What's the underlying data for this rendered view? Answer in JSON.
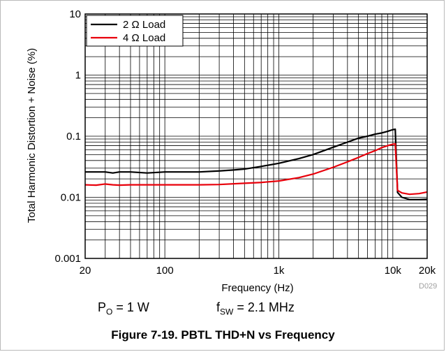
{
  "chart_data": {
    "type": "line",
    "xlabel": "Frequency (Hz)",
    "ylabel": "Total Harmonic Distortion + Noise (%)",
    "x_scale": "log",
    "y_scale": "log",
    "xlim": [
      20,
      20000
    ],
    "ylim": [
      0.001,
      10
    ],
    "x_ticks": [
      {
        "value": 20,
        "label": "20"
      },
      {
        "value": 100,
        "label": "100"
      },
      {
        "value": 1000,
        "label": "1k"
      },
      {
        "value": 10000,
        "label": "10k"
      },
      {
        "value": 20000,
        "label": "20k"
      }
    ],
    "y_ticks": [
      {
        "value": 0.001,
        "label": "0.001"
      },
      {
        "value": 0.01,
        "label": "0.01"
      },
      {
        "value": 0.1,
        "label": "0.1"
      },
      {
        "value": 1,
        "label": "1"
      },
      {
        "value": 10,
        "label": "10"
      }
    ],
    "grid": true,
    "legend_position": "top-left",
    "series": [
      {
        "name": "2 Ω Load",
        "color": "#000000",
        "points": [
          [
            20,
            0.026
          ],
          [
            25,
            0.026
          ],
          [
            30,
            0.026
          ],
          [
            35,
            0.025
          ],
          [
            40,
            0.026
          ],
          [
            50,
            0.026
          ],
          [
            70,
            0.025
          ],
          [
            100,
            0.026
          ],
          [
            150,
            0.026
          ],
          [
            200,
            0.026
          ],
          [
            300,
            0.027
          ],
          [
            400,
            0.028
          ],
          [
            500,
            0.029
          ],
          [
            700,
            0.032
          ],
          [
            1000,
            0.036
          ],
          [
            1500,
            0.043
          ],
          [
            2000,
            0.05
          ],
          [
            3000,
            0.066
          ],
          [
            4000,
            0.08
          ],
          [
            5000,
            0.093
          ],
          [
            6000,
            0.1
          ],
          [
            7000,
            0.108
          ],
          [
            8000,
            0.113
          ],
          [
            9000,
            0.12
          ],
          [
            10000,
            0.128
          ],
          [
            10500,
            0.13
          ],
          [
            11000,
            0.012
          ],
          [
            12000,
            0.01
          ],
          [
            14000,
            0.0092
          ],
          [
            17000,
            0.0092
          ],
          [
            20000,
            0.0093
          ]
        ]
      },
      {
        "name": "4 Ω Load",
        "color": "#e8000b",
        "points": [
          [
            20,
            0.016
          ],
          [
            25,
            0.0158
          ],
          [
            30,
            0.0165
          ],
          [
            35,
            0.016
          ],
          [
            40,
            0.0158
          ],
          [
            50,
            0.016
          ],
          [
            70,
            0.016
          ],
          [
            100,
            0.016
          ],
          [
            150,
            0.016
          ],
          [
            200,
            0.016
          ],
          [
            300,
            0.0162
          ],
          [
            500,
            0.017
          ],
          [
            700,
            0.0175
          ],
          [
            1000,
            0.0185
          ],
          [
            1500,
            0.021
          ],
          [
            2000,
            0.024
          ],
          [
            3000,
            0.031
          ],
          [
            4000,
            0.038
          ],
          [
            5000,
            0.045
          ],
          [
            6000,
            0.052
          ],
          [
            7000,
            0.058
          ],
          [
            8000,
            0.065
          ],
          [
            9000,
            0.07
          ],
          [
            10000,
            0.074
          ],
          [
            10500,
            0.075
          ],
          [
            11000,
            0.013
          ],
          [
            12000,
            0.0118
          ],
          [
            14000,
            0.0112
          ],
          [
            17000,
            0.0115
          ],
          [
            20000,
            0.0122
          ]
        ]
      }
    ]
  },
  "conditions": {
    "po_main": "P",
    "po_sub": "O",
    "po_value": " = 1 W",
    "fsw_main": "f",
    "fsw_sub": "SW",
    "fsw_value": " = 2.1 MHz"
  },
  "figure_code": "D029",
  "caption": "Figure 7-19. PBTL THD+N vs Frequency"
}
